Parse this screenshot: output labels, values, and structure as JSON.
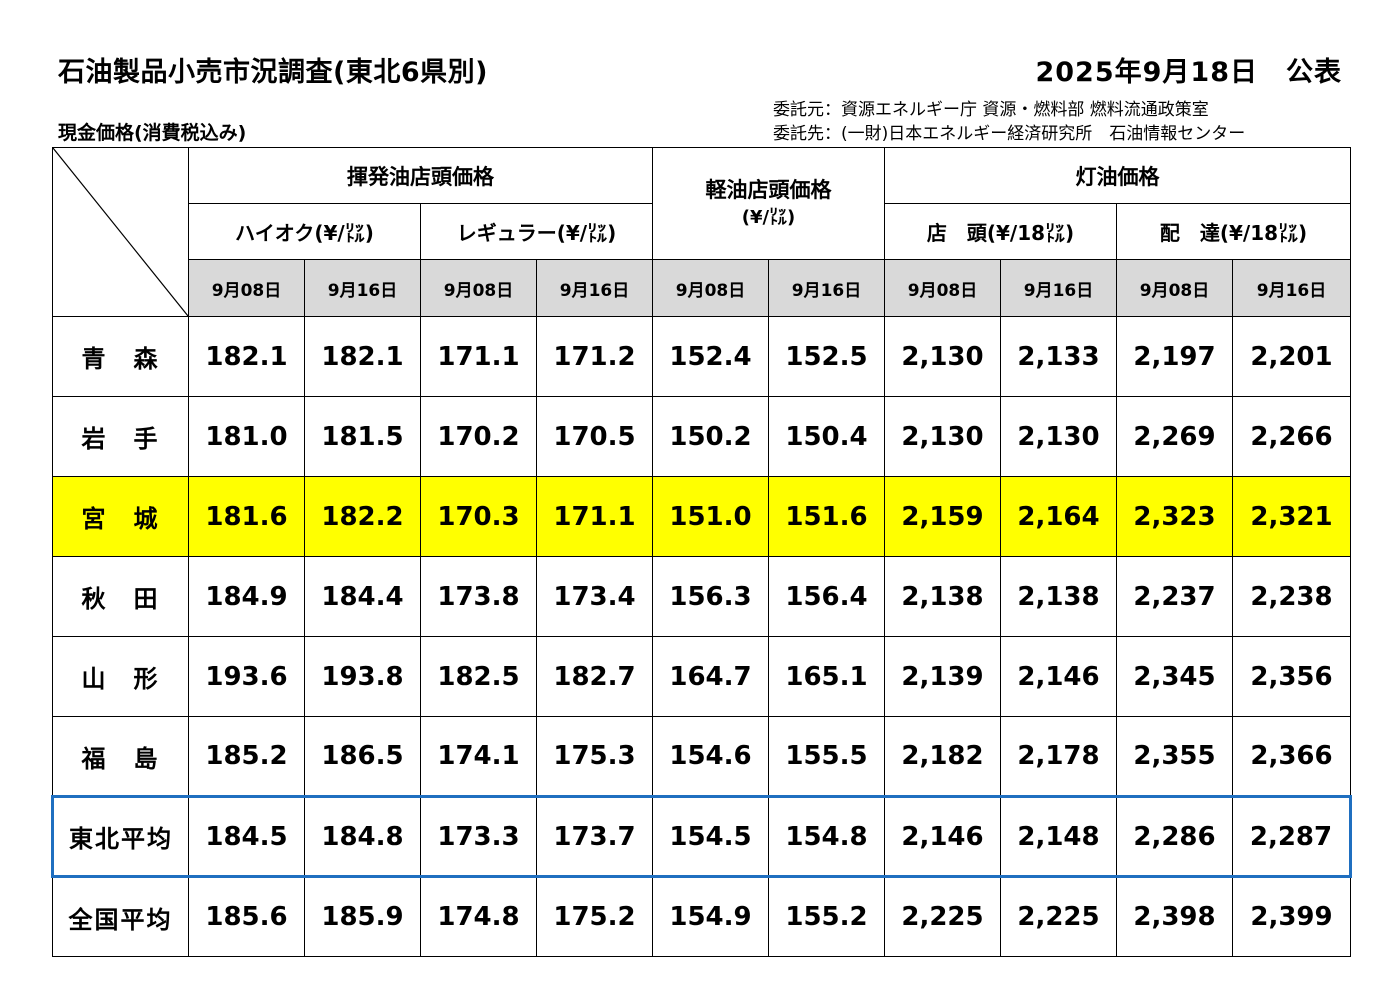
{
  "header": {
    "title": "石油製品小売市況調査(東北6県別)",
    "date": "2025年9月18日　公表",
    "subtitle": "現金価格(消費税込み)",
    "commissioner": "委託元：資源エネルギー庁 資源・燃料部 燃料流通政策室",
    "contractor": "委託先：(一財)日本エネルギー経済研究所　石油情報センター"
  },
  "columns": {
    "gasoline": "揮発油店頭価格",
    "premium": "ハイオク(¥/㍑)",
    "regular": "レギュラー(¥/㍑)",
    "diesel": "軽油店頭価格",
    "diesel_unit": "(¥/㍑)",
    "kerosene": "灯油価格",
    "kerosene_store": "店　頭(¥/18㍑)",
    "kerosene_delivery": "配　達(¥/18㍑)",
    "dates": [
      "9月08日",
      "9月16日",
      "9月08日",
      "9月16日",
      "9月08日",
      "9月16日",
      "9月08日",
      "9月16日",
      "9月08日",
      "9月16日"
    ]
  },
  "rows": [
    {
      "region": "青　森",
      "values": [
        "182.1",
        "182.1",
        "171.1",
        "171.2",
        "152.4",
        "152.5",
        "2,130",
        "2,133",
        "2,197",
        "2,201"
      ]
    },
    {
      "region": "岩　手",
      "values": [
        "181.0",
        "181.5",
        "170.2",
        "170.5",
        "150.2",
        "150.4",
        "2,130",
        "2,130",
        "2,269",
        "2,266"
      ]
    },
    {
      "region": "宮　城",
      "values": [
        "181.6",
        "182.2",
        "170.3",
        "171.1",
        "151.0",
        "151.6",
        "2,159",
        "2,164",
        "2,323",
        "2,321"
      ]
    },
    {
      "region": "秋　田",
      "values": [
        "184.9",
        "184.4",
        "173.8",
        "173.4",
        "156.3",
        "156.4",
        "2,138",
        "2,138",
        "2,237",
        "2,238"
      ]
    },
    {
      "region": "山　形",
      "values": [
        "193.6",
        "193.8",
        "182.5",
        "182.7",
        "164.7",
        "165.1",
        "2,139",
        "2,146",
        "2,345",
        "2,356"
      ]
    },
    {
      "region": "福　島",
      "values": [
        "185.2",
        "186.5",
        "174.1",
        "175.3",
        "154.6",
        "155.5",
        "2,182",
        "2,178",
        "2,355",
        "2,366"
      ]
    },
    {
      "region": "東北平均",
      "values": [
        "184.5",
        "184.8",
        "173.3",
        "173.7",
        "154.5",
        "154.8",
        "2,146",
        "2,148",
        "2,286",
        "2,287"
      ]
    },
    {
      "region": "全国平均",
      "values": [
        "185.6",
        "185.9",
        "174.8",
        "175.2",
        "154.9",
        "155.2",
        "2,225",
        "2,225",
        "2,398",
        "2,399"
      ]
    }
  ],
  "colors": {
    "highlight": "#ffff00",
    "tohoku_border": "#1f6fc0",
    "date_header": "#d9d9d9"
  }
}
